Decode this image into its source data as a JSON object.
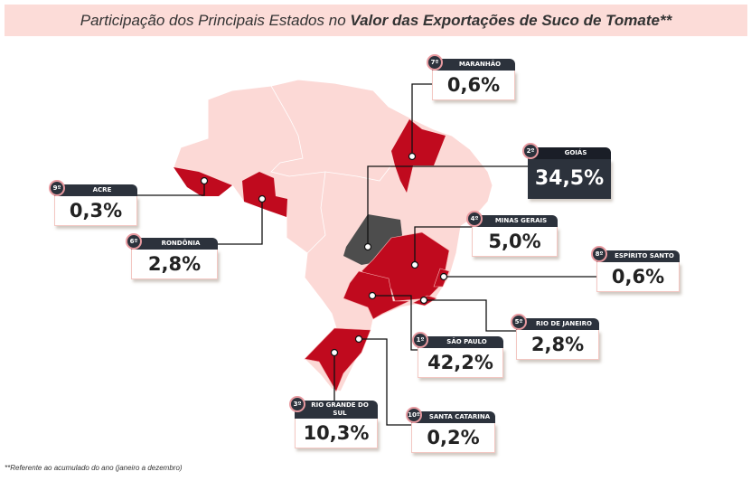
{
  "title": {
    "regular": "Participação dos Principais Estados no ",
    "bold": "Valor das Exportações de Suco de Tomate**"
  },
  "colors": {
    "highlight": "#c00a1e",
    "top": "#4d4d4d",
    "base": "#fcd9d6",
    "header": "#2c323c"
  },
  "states": [
    {
      "rank": "7º",
      "name": "MARANHÃO",
      "value": "0,6%"
    },
    {
      "rank": "2º",
      "name": "GOIÁS",
      "value": "34,5%"
    },
    {
      "rank": "9º",
      "name": "ACRE",
      "value": "0,3%"
    },
    {
      "rank": "6º",
      "name": "RONDÔNIA",
      "value": "2,8%"
    },
    {
      "rank": "4º",
      "name": "MINAS GERAIS",
      "value": "5,0%"
    },
    {
      "rank": "8º",
      "name": "ESPÍRITO SANTO",
      "value": "0,6%"
    },
    {
      "rank": "5º",
      "name": "RIO DE JANEIRO",
      "value": "2,8%"
    },
    {
      "rank": "1º",
      "name": "SÃO PAULO",
      "value": "42,2%"
    },
    {
      "rank": "3º",
      "name": "RIO GRANDE DO SUL",
      "value": "10,3%"
    },
    {
      "rank": "10º",
      "name": "SANTA CATARINA",
      "value": "0,2%"
    }
  ],
  "footnote": "**Referente ao acumulado do ano (janeiro a dezembro)"
}
